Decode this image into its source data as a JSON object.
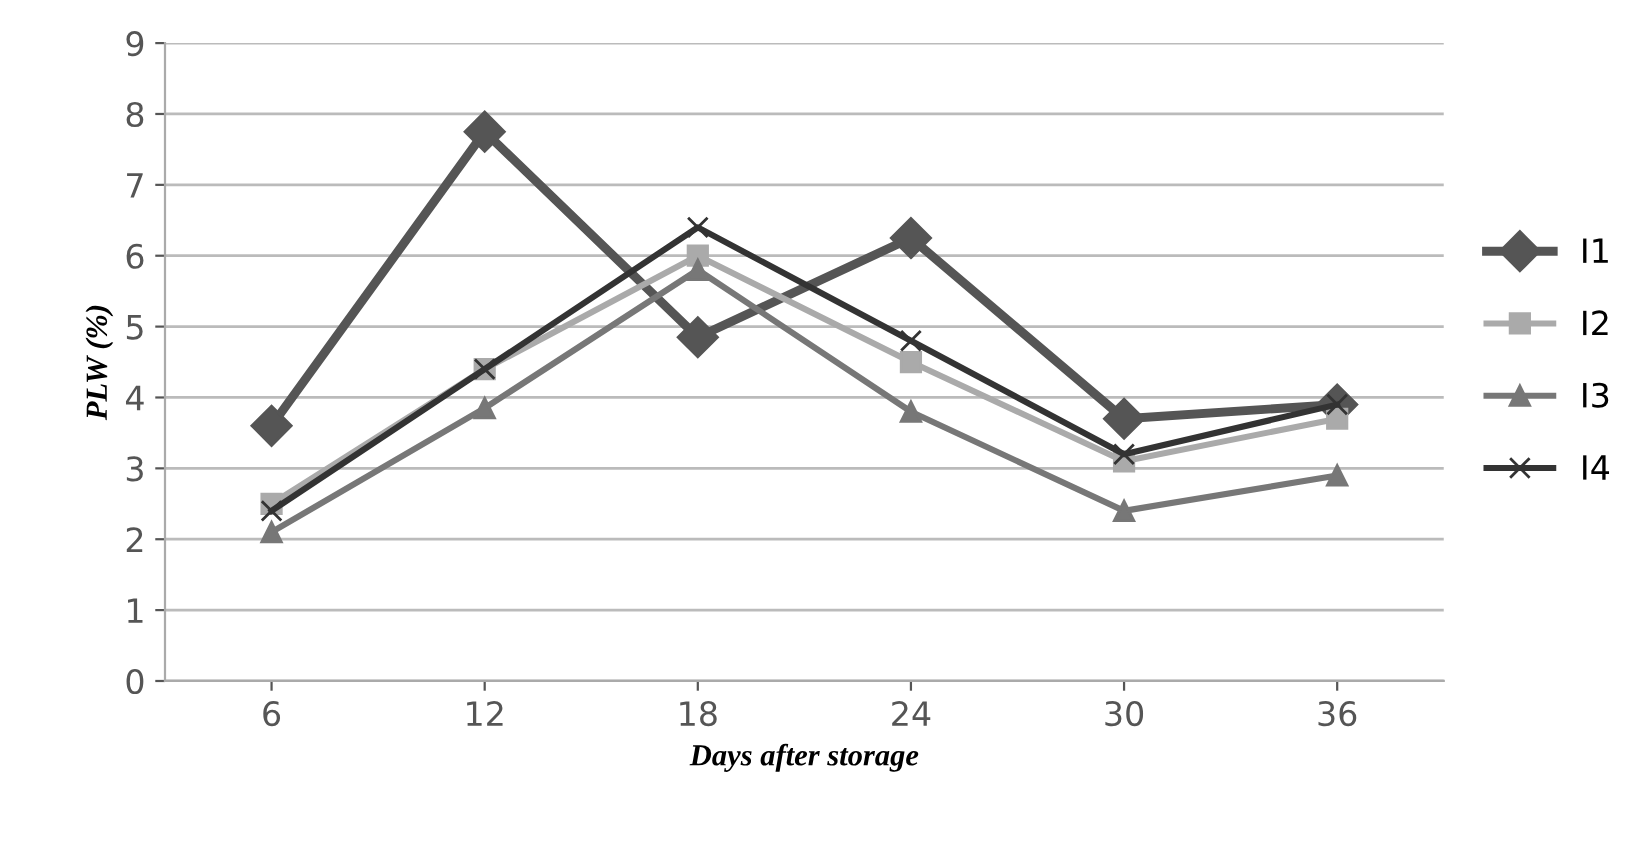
{
  "chart_data": {
    "type": "line",
    "xlabel": "Days after storage",
    "ylabel": "PLW (%)",
    "categories": [
      "6",
      "12",
      "18",
      "24",
      "30",
      "36"
    ],
    "series": [
      {
        "name": "I1",
        "color": "#555555",
        "marker": "diamond",
        "values": [
          3.6,
          7.75,
          4.85,
          6.25,
          3.7,
          3.9
        ]
      },
      {
        "name": "I2",
        "color": "#aaaaaa",
        "marker": "square",
        "values": [
          2.5,
          4.4,
          6.0,
          4.5,
          3.1,
          3.7
        ]
      },
      {
        "name": "I3",
        "color": "#777777",
        "marker": "triangle",
        "values": [
          2.1,
          3.85,
          5.8,
          3.8,
          2.4,
          2.9
        ]
      },
      {
        "name": "I4",
        "color": "#333333",
        "marker": "cross",
        "values": [
          2.4,
          4.4,
          6.4,
          4.8,
          3.2,
          3.9
        ]
      }
    ],
    "ylim": [
      0,
      9
    ],
    "yticks": [
      0,
      1,
      2,
      3,
      4,
      5,
      6,
      7,
      8,
      9
    ],
    "grid": "y",
    "legend": "right"
  }
}
